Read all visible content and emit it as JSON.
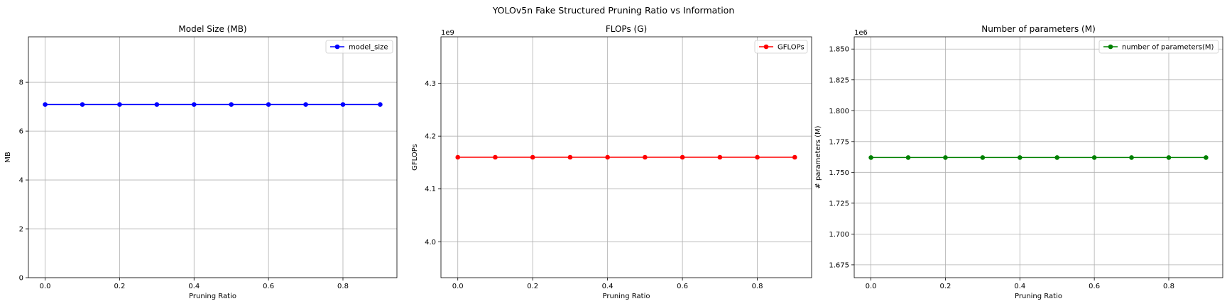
{
  "figure": {
    "suptitle": "YOLOv5n Fake Structured Pruning Ratio vs Information"
  },
  "chart_data": [
    {
      "type": "line",
      "title": "Model Size (MB)",
      "xlabel": "Pruning Ratio",
      "ylabel": "MB",
      "offset_label": "",
      "xlim": [
        -0.045,
        0.945
      ],
      "ylim": [
        0,
        9.86
      ],
      "xticks": [
        0.0,
        0.2,
        0.4,
        0.6,
        0.8
      ],
      "xtick_labels": [
        "0.0",
        "0.2",
        "0.4",
        "0.6",
        "0.8"
      ],
      "yticks": [
        0,
        2,
        4,
        6,
        8
      ],
      "ytick_labels": [
        "0",
        "2",
        "4",
        "6",
        "8"
      ],
      "grid": true,
      "legend_position": "upper right",
      "series": [
        {
          "name": "model_size",
          "color": "#0000ff",
          "x": [
            0.0,
            0.1,
            0.2,
            0.3,
            0.4,
            0.5,
            0.6,
            0.7,
            0.8,
            0.9
          ],
          "y": [
            7.09,
            7.09,
            7.09,
            7.09,
            7.09,
            7.09,
            7.09,
            7.09,
            7.09,
            7.09
          ]
        }
      ]
    },
    {
      "type": "line",
      "title": "FLOPs (G)",
      "xlabel": "Pruning Ratio",
      "ylabel": "GFLOPs",
      "offset_label": "1e9",
      "xlim": [
        -0.045,
        0.945
      ],
      "ylim": [
        3.932,
        4.388
      ],
      "xticks": [
        0.0,
        0.2,
        0.4,
        0.6,
        0.8
      ],
      "xtick_labels": [
        "0.0",
        "0.2",
        "0.4",
        "0.6",
        "0.8"
      ],
      "yticks": [
        4.0,
        4.1,
        4.2,
        4.3
      ],
      "ytick_labels": [
        "4.0",
        "4.1",
        "4.2",
        "4.3"
      ],
      "grid": true,
      "legend_position": "upper right",
      "series": [
        {
          "name": "GFLOPs",
          "color": "#ff0000",
          "x": [
            0.0,
            0.1,
            0.2,
            0.3,
            0.4,
            0.5,
            0.6,
            0.7,
            0.8,
            0.9
          ],
          "y": [
            4.16,
            4.16,
            4.16,
            4.16,
            4.16,
            4.16,
            4.16,
            4.16,
            4.16,
            4.16
          ]
        }
      ]
    },
    {
      "type": "line",
      "title": "Number of parameters (M)",
      "xlabel": "Pruning Ratio",
      "ylabel": "# parameters (M)",
      "offset_label": "1e6",
      "xlim": [
        -0.045,
        0.945
      ],
      "ylim": [
        1.6646,
        1.8599
      ],
      "xticks": [
        0.0,
        0.2,
        0.4,
        0.6,
        0.8
      ],
      "xtick_labels": [
        "0.0",
        "0.2",
        "0.4",
        "0.6",
        "0.8"
      ],
      "yticks": [
        1.675,
        1.7,
        1.725,
        1.75,
        1.775,
        1.8,
        1.825,
        1.85
      ],
      "ytick_labels": [
        "1.675",
        "1.700",
        "1.725",
        "1.750",
        "1.775",
        "1.800",
        "1.825",
        "1.850"
      ],
      "grid": true,
      "legend_position": "upper right",
      "series": [
        {
          "name": "number of parameters(M)",
          "color": "#008000",
          "x": [
            0.0,
            0.1,
            0.2,
            0.3,
            0.4,
            0.5,
            0.6,
            0.7,
            0.8,
            0.9
          ],
          "y": [
            1.762,
            1.762,
            1.762,
            1.762,
            1.762,
            1.762,
            1.762,
            1.762,
            1.762,
            1.762
          ]
        }
      ]
    }
  ]
}
